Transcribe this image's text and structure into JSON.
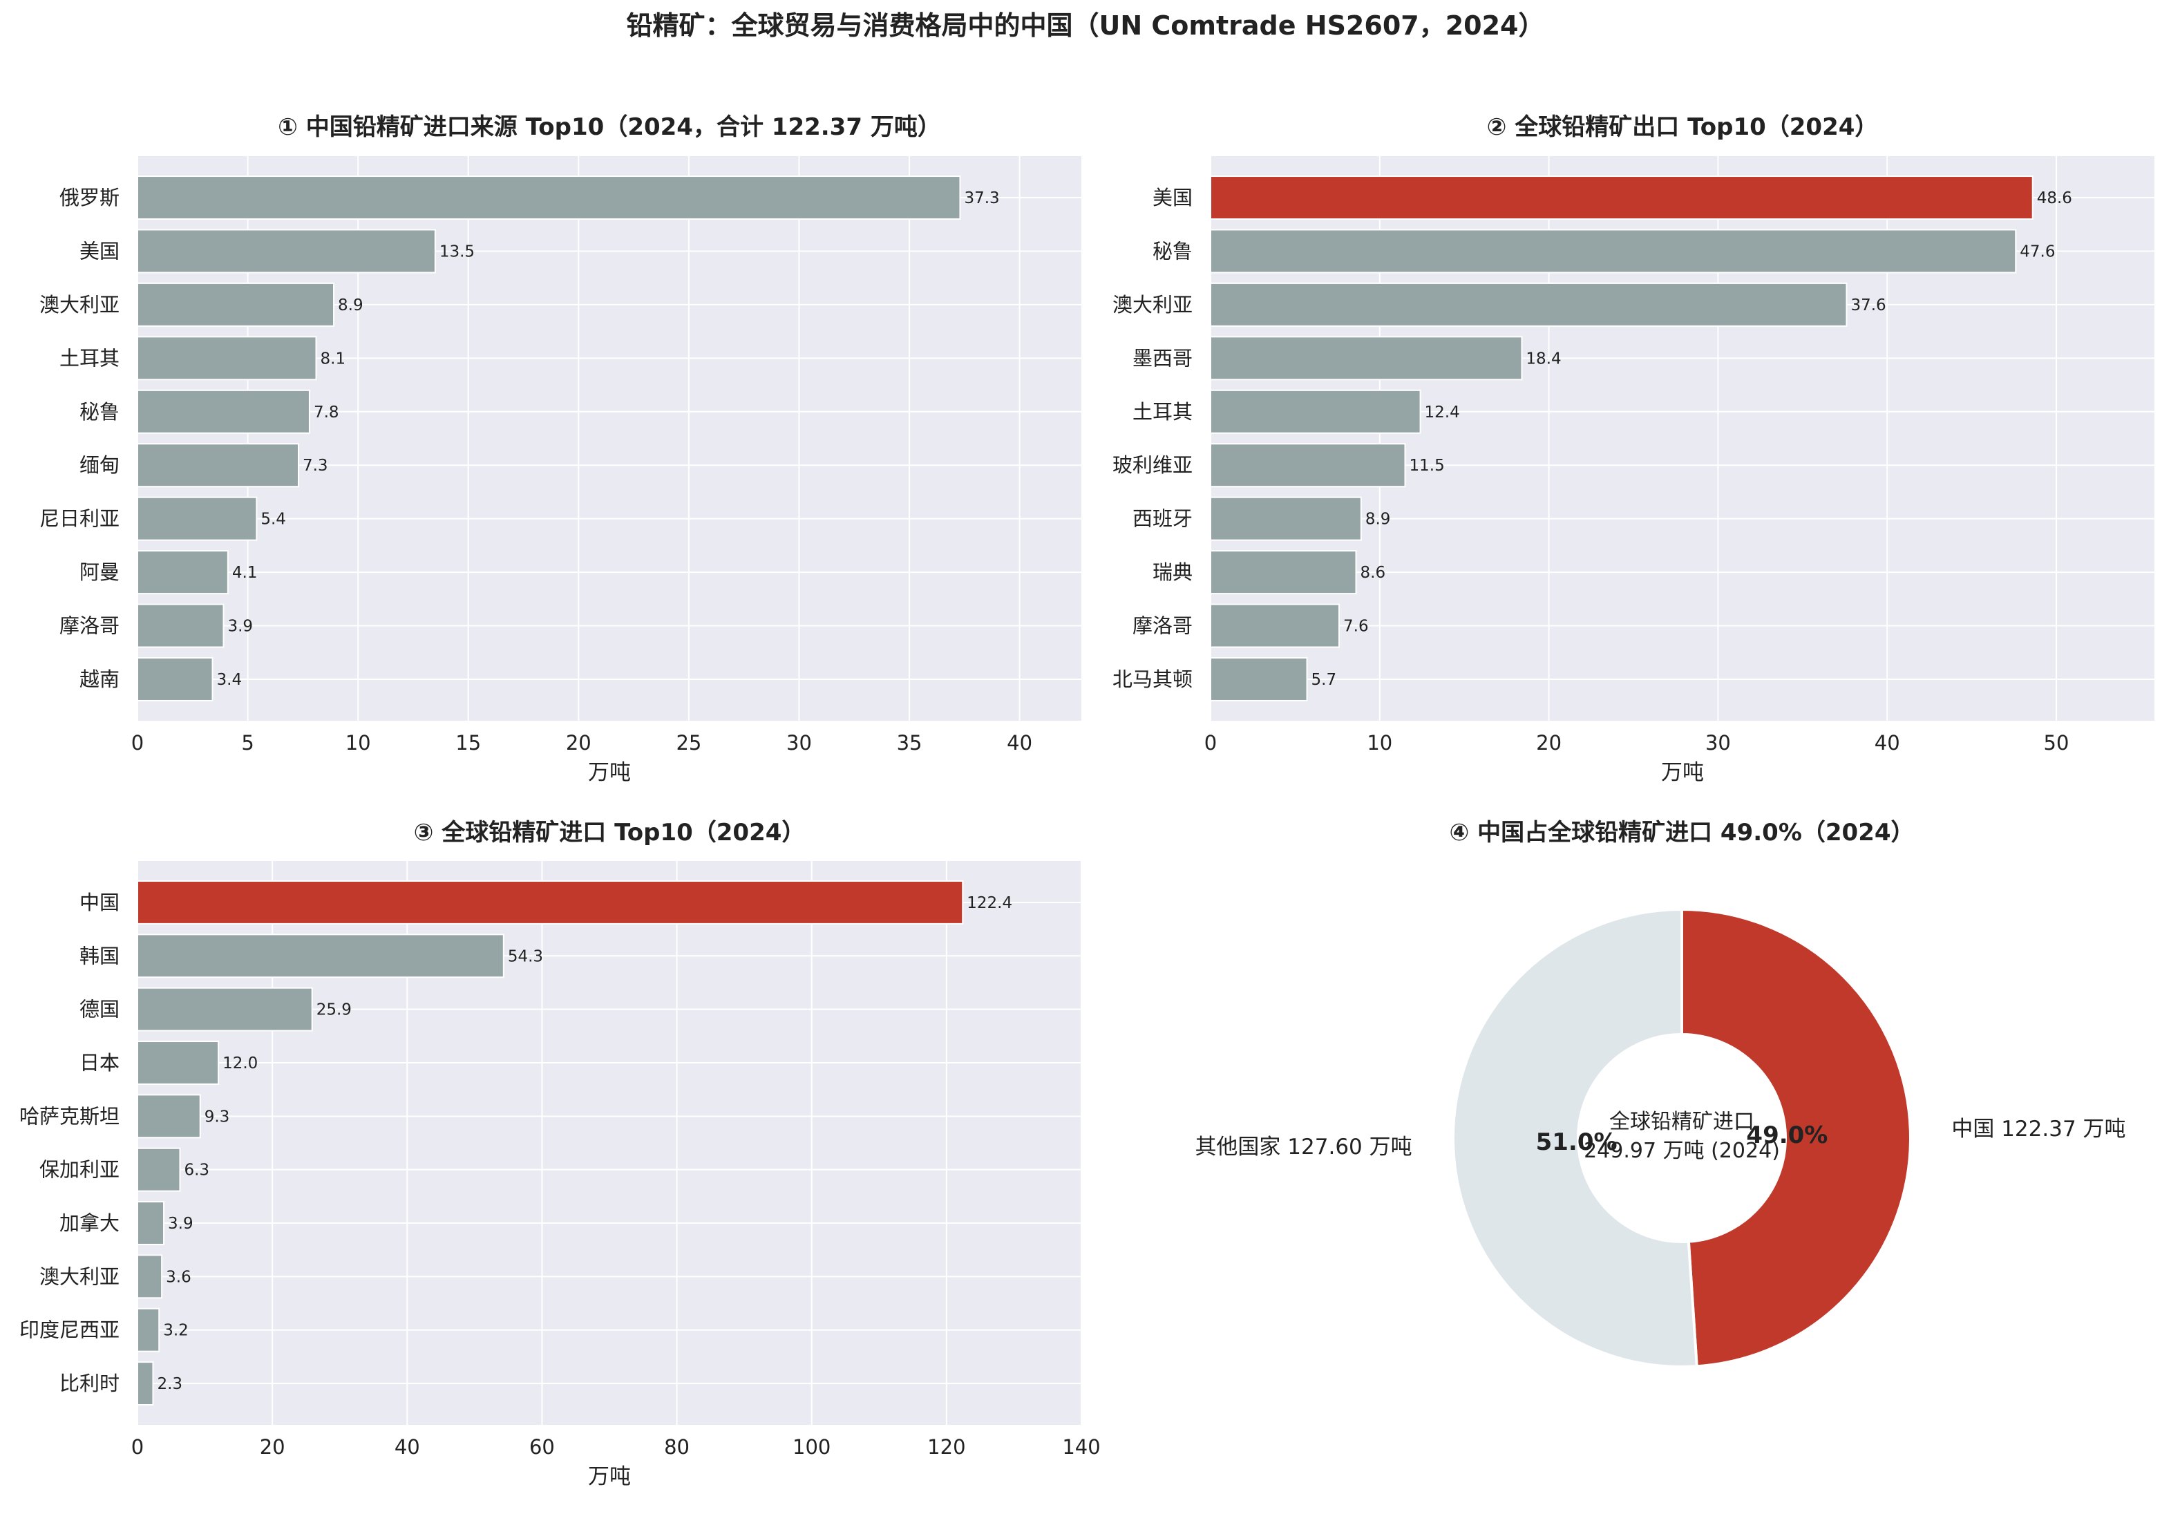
{
  "figure_title": "铅精矿：全球贸易与消费格局中的中国（UN Comtrade HS2607，2024）",
  "colors": {
    "highlight": "#c0392b",
    "bar": "#95a5a6",
    "panel_bg": "#eaeaf2",
    "grid": "#ffffff",
    "pie_other": "#dfe6e9"
  },
  "chart_data": [
    {
      "type": "bar",
      "orientation": "horizontal",
      "title": "① 中国铅精矿进口来源 Top10（2024，合计 122.37 万吨）",
      "xlabel": "万吨",
      "xlim": [
        0,
        42.8
      ],
      "xticks": [
        0,
        5,
        10,
        15,
        20,
        25,
        30,
        35,
        40
      ],
      "categories": [
        "俄罗斯",
        "美国",
        "澳大利亚",
        "土耳其",
        "秘鲁",
        "缅甸",
        "尼日利亚",
        "阿曼",
        "摩洛哥",
        "越南"
      ],
      "values": [
        37.3,
        13.5,
        8.9,
        8.1,
        7.8,
        7.3,
        5.4,
        4.1,
        3.9,
        3.4
      ],
      "labels": [
        "37.3",
        "13.5",
        "8.9",
        "8.1",
        "7.8",
        "7.3",
        "5.4",
        "4.1",
        "3.9",
        "3.4"
      ],
      "highlight": []
    },
    {
      "type": "bar",
      "orientation": "horizontal",
      "title": "② 全球铅精矿出口 Top10（2024）",
      "xlabel": "万吨",
      "xlim": [
        0,
        55.8
      ],
      "xticks": [
        0,
        10,
        20,
        30,
        40,
        50
      ],
      "categories": [
        "美国",
        "秘鲁",
        "澳大利亚",
        "墨西哥",
        "土耳其",
        "玻利维亚",
        "西班牙",
        "瑞典",
        "摩洛哥",
        "北马其顿"
      ],
      "values": [
        48.6,
        47.6,
        37.6,
        18.4,
        12.4,
        11.5,
        8.9,
        8.6,
        7.6,
        5.7
      ],
      "labels": [
        "48.6",
        "47.6",
        "37.6",
        "18.4",
        "12.4",
        "11.5",
        "8.9",
        "8.6",
        "7.6",
        "5.7"
      ],
      "highlight": [
        "美国"
      ]
    },
    {
      "type": "bar",
      "orientation": "horizontal",
      "title": "③ 全球铅精矿进口 Top10（2024）",
      "xlabel": "万吨",
      "xlim": [
        0,
        140
      ],
      "xticks": [
        0,
        20,
        40,
        60,
        80,
        100,
        120,
        140
      ],
      "categories": [
        "中国",
        "韩国",
        "德国",
        "日本",
        "哈萨克斯坦",
        "保加利亚",
        "加拿大",
        "澳大利亚",
        "印度尼西亚",
        "比利时"
      ],
      "values": [
        122.4,
        54.3,
        25.9,
        12.0,
        9.3,
        6.3,
        3.9,
        3.6,
        3.2,
        2.3
      ],
      "labels": [
        "122.4",
        "54.3",
        "25.9",
        "12.0",
        "9.3",
        "6.3",
        "3.9",
        "3.6",
        "3.2",
        "2.3"
      ],
      "highlight": [
        "中国"
      ]
    },
    {
      "type": "pie",
      "donut": true,
      "title": "④ 中国占全球铅精矿进口 49.0%（2024）",
      "slices": [
        {
          "label": "中国 122.37 万吨",
          "value": 122.37,
          "pct": "49.0%",
          "color": "#c0392b"
        },
        {
          "label": "其他国家 127.60 万吨",
          "value": 127.6,
          "pct": "51.0%",
          "color": "#dfe6e9"
        }
      ],
      "center_text": [
        "全球铅精矿进口",
        "249.97 万吨 (2024)"
      ]
    }
  ]
}
